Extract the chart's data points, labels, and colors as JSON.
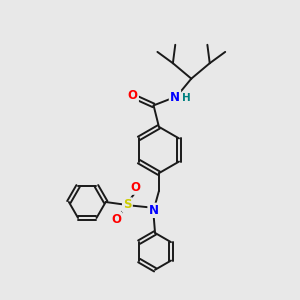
{
  "bg_color": "#e8e8e8",
  "bond_color": "#1a1a1a",
  "atom_colors": {
    "O": "#ff0000",
    "N": "#0000ff",
    "S": "#cccc00",
    "H": "#008080"
  },
  "figsize": [
    3.0,
    3.0
  ],
  "dpi": 100
}
